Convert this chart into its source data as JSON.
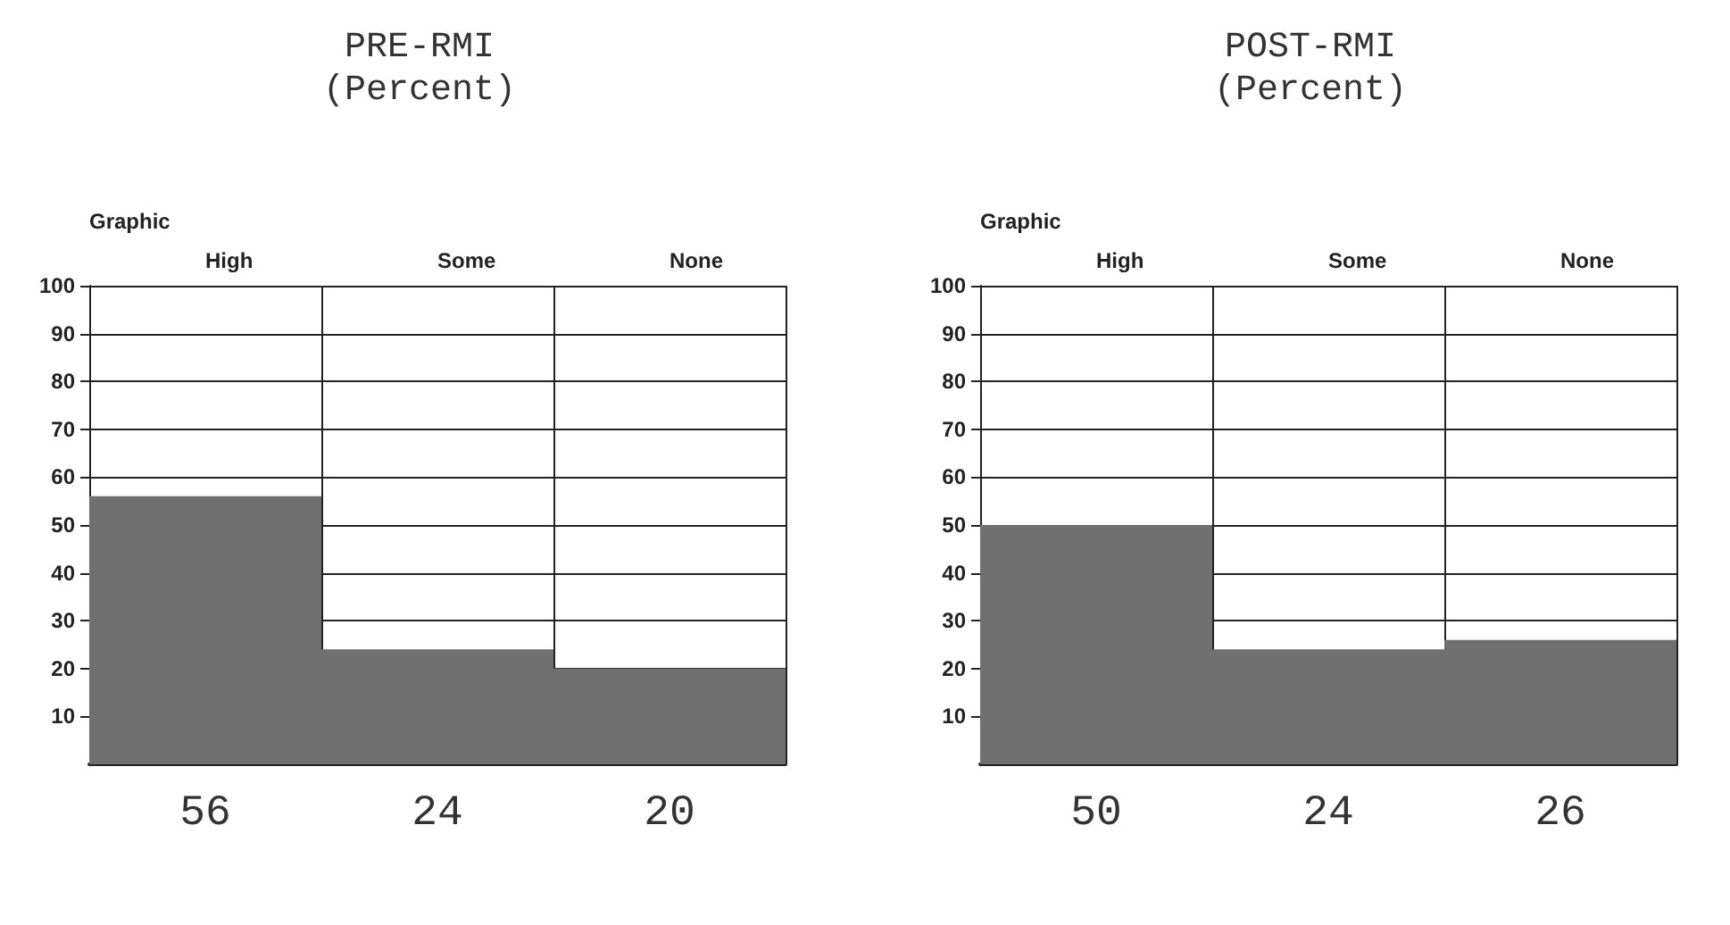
{
  "chart_data": [
    {
      "type": "bar",
      "title": "PRE-RMI\n(Percent)",
      "xlabel": "Graphic",
      "categories": [
        "High",
        "Some",
        "None"
      ],
      "values": [
        56,
        24,
        20
      ],
      "color": "#707070",
      "ylim": [
        0,
        100
      ],
      "yticks": [
        10,
        20,
        30,
        40,
        50,
        60,
        70,
        80,
        90,
        100
      ],
      "grid": "y",
      "data_labels": true
    },
    {
      "type": "bar",
      "title": "POST-RMI\n(Percent)",
      "xlabel": "Graphic",
      "categories": [
        "High",
        "Some",
        "None"
      ],
      "values": [
        50,
        24,
        26
      ],
      "color": "#707070",
      "ylim": [
        0,
        100
      ],
      "yticks": [
        10,
        20,
        30,
        40,
        50,
        60,
        70,
        80,
        90,
        100
      ],
      "grid": "y",
      "data_labels": true
    }
  ]
}
